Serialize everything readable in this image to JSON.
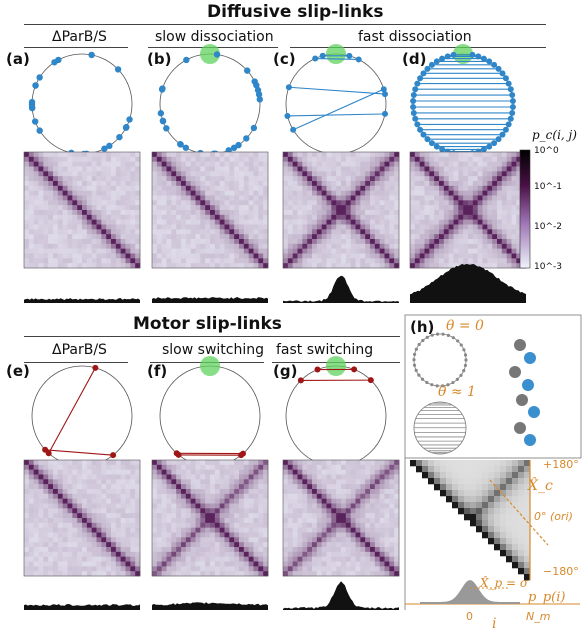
{
  "top_section": {
    "title": "Diffusive slip-links"
  },
  "bottom_section": {
    "title": "Motor slip-links"
  },
  "top_columns": [
    "ΔParB/S",
    "slow dissociation",
    "fast dissociation"
  ],
  "bottom_columns": [
    "ΔParB/S",
    "slow switching",
    "fast switching"
  ],
  "panels": [
    "(a)",
    "(b)",
    "(c)",
    "(d)",
    "(e)",
    "(f)",
    "(g)",
    "(h)"
  ],
  "colorbar": {
    "label": "p_c(i, j)",
    "ticks": [
      "10^0",
      "10^-1",
      "10^-2",
      "10^-3"
    ]
  },
  "panel_h": {
    "theta0": "θ = 0",
    "theta1": "θ ≈ 1",
    "xc": "X̂_c",
    "xp": "X̂_p = σ",
    "pp": "p_p(i)",
    "y_ticks": [
      "+180°",
      "0° (ori)",
      "−180°"
    ],
    "x_ticks": [
      "0",
      "N_m"
    ],
    "x_label": "i"
  },
  "colors": {
    "blue": "#2f86c9",
    "red": "#a01616",
    "green": "#5fd35f",
    "purple": "#6b1a66",
    "orange": "#d9892a"
  }
}
